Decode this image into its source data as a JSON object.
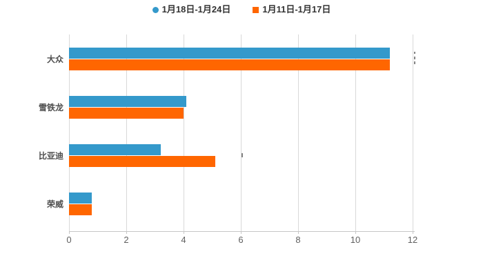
{
  "chart_data": {
    "type": "bar",
    "orientation": "horizontal",
    "title": "",
    "categories": [
      "大众",
      "雪铁龙",
      "比亚迪",
      "荣威"
    ],
    "series": [
      {
        "name": "1月18日-1月24日",
        "color": "#3499cb",
        "marker": "round",
        "values": [
          11.2,
          4.1,
          3.2,
          0.8
        ]
      },
      {
        "name": "1月11日-1月17日",
        "color": "#ff6600",
        "marker": "square",
        "values": [
          11.2,
          4.0,
          5.1,
          0.8
        ]
      }
    ],
    "xlabel": "",
    "ylabel": "",
    "xlim": [
      0,
      12
    ],
    "xticks": [
      0,
      2,
      4,
      6,
      8,
      10,
      12
    ],
    "grid": true,
    "legend_position": "top"
  },
  "colors": {
    "background": "#ffffff",
    "gridline": "#d8d8d8",
    "axis_line": "#c6c6c6",
    "tick_label": "#606060",
    "category_label": "#4d4d4d",
    "legend_text": "#333333"
  }
}
